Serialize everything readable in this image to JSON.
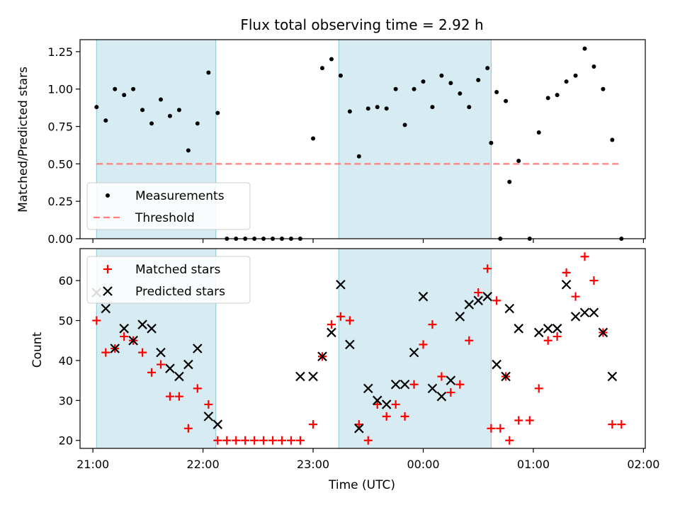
{
  "chart_data": [
    {
      "type": "scatter",
      "title": "Flux total observing time = 2.92 h",
      "ylabel": "Matched/Predicted stars",
      "xlabel": "",
      "xlim": [
        "20:53",
        "02:01"
      ],
      "ylim": [
        0,
        1.33
      ],
      "yticks": [
        "0.00",
        "0.25",
        "0.50",
        "0.75",
        "1.00",
        "1.25"
      ],
      "grid": false,
      "legend_placement": "lower-left",
      "shaded_intervals": [
        [
          "21:02",
          "22:07"
        ],
        [
          "23:14",
          "00:37"
        ]
      ],
      "series": [
        {
          "name": "Measurements",
          "marker": "dot",
          "color": "#000000",
          "points": [
            [
              "21:02",
              0.88
            ],
            [
              "21:07",
              0.79
            ],
            [
              "21:12",
              1.0
            ],
            [
              "21:17",
              0.96
            ],
            [
              "21:22",
              1.0
            ],
            [
              "21:27",
              0.86
            ],
            [
              "21:32",
              0.77
            ],
            [
              "21:37",
              0.93
            ],
            [
              "21:42",
              0.82
            ],
            [
              "21:47",
              0.86
            ],
            [
              "21:52",
              0.59
            ],
            [
              "21:57",
              0.77
            ],
            [
              "22:03",
              1.11
            ],
            [
              "22:08",
              0.84
            ],
            [
              "22:13",
              0.0
            ],
            [
              "22:18",
              0.0
            ],
            [
              "22:23",
              0.0
            ],
            [
              "22:28",
              0.0
            ],
            [
              "22:33",
              0.0
            ],
            [
              "22:38",
              0.0
            ],
            [
              "22:43",
              0.0
            ],
            [
              "22:48",
              0.0
            ],
            [
              "22:53",
              0.0
            ],
            [
              "23:00",
              0.67
            ],
            [
              "23:05",
              1.14
            ],
            [
              "23:10",
              1.2
            ],
            [
              "23:15",
              1.09
            ],
            [
              "23:20",
              0.85
            ],
            [
              "23:25",
              0.55
            ],
            [
              "23:30",
              0.87
            ],
            [
              "23:35",
              0.88
            ],
            [
              "23:40",
              0.87
            ],
            [
              "23:45",
              1.0
            ],
            [
              "23:50",
              0.76
            ],
            [
              "23:55",
              1.0
            ],
            [
              "00:00",
              1.05
            ],
            [
              "00:05",
              0.88
            ],
            [
              "00:10",
              1.09
            ],
            [
              "00:15",
              1.04
            ],
            [
              "00:20",
              0.97
            ],
            [
              "00:25",
              0.88
            ],
            [
              "00:30",
              1.06
            ],
            [
              "00:35",
              1.14
            ],
            [
              "00:40",
              0.98
            ],
            [
              "00:45",
              0.92
            ],
            [
              "00:37",
              0.64
            ],
            [
              "00:42",
              0.0
            ],
            [
              "00:47",
              0.38
            ],
            [
              "00:52",
              0.52
            ],
            [
              "00:58",
              0.0
            ],
            [
              "01:03",
              0.71
            ],
            [
              "01:08",
              0.94
            ],
            [
              "01:13",
              0.96
            ],
            [
              "01:18",
              1.05
            ],
            [
              "01:23",
              1.09
            ],
            [
              "01:28",
              1.27
            ],
            [
              "01:33",
              1.15
            ],
            [
              "01:38",
              1.0
            ],
            [
              "01:43",
              0.66
            ],
            [
              "01:48",
              0.0
            ]
          ]
        },
        {
          "name": "Threshold",
          "marker": "dashed-line",
          "color": "#ff8080",
          "points": [
            [
              "21:02",
              0.5
            ],
            [
              "01:48",
              0.5
            ]
          ]
        }
      ]
    },
    {
      "type": "scatter",
      "title": "",
      "ylabel": "Count",
      "xlabel": "Time (UTC)",
      "xlim": [
        "20:53",
        "02:01"
      ],
      "ylim": [
        18,
        68
      ],
      "xticks": [
        "21:00",
        "22:00",
        "23:00",
        "00:00",
        "01:00",
        "02:00"
      ],
      "yticks": [
        "20",
        "30",
        "40",
        "50",
        "60"
      ],
      "grid": false,
      "legend_placement": "upper-left",
      "shaded_intervals": [
        [
          "21:02",
          "22:07"
        ],
        [
          "23:14",
          "00:37"
        ]
      ],
      "series": [
        {
          "name": "Matched stars",
          "marker": "plus",
          "color": "#ff0000",
          "points": [
            [
              "21:02",
              50
            ],
            [
              "21:07",
              42
            ],
            [
              "21:12",
              43
            ],
            [
              "21:17",
              46
            ],
            [
              "21:22",
              45
            ],
            [
              "21:27",
              42
            ],
            [
              "21:32",
              37
            ],
            [
              "21:37",
              39
            ],
            [
              "21:42",
              31
            ],
            [
              "21:47",
              31
            ],
            [
              "21:52",
              23
            ],
            [
              "21:57",
              33
            ],
            [
              "22:03",
              29
            ],
            [
              "22:08",
              20
            ],
            [
              "22:13",
              20
            ],
            [
              "22:18",
              20
            ],
            [
              "22:23",
              20
            ],
            [
              "22:28",
              20
            ],
            [
              "22:33",
              20
            ],
            [
              "22:38",
              20
            ],
            [
              "22:43",
              20
            ],
            [
              "22:48",
              20
            ],
            [
              "22:53",
              20
            ],
            [
              "23:00",
              24
            ],
            [
              "23:05",
              41
            ],
            [
              "23:10",
              49
            ],
            [
              "23:15",
              51
            ],
            [
              "23:20",
              50
            ],
            [
              "23:25",
              24
            ],
            [
              "23:30",
              20
            ],
            [
              "23:35",
              29
            ],
            [
              "23:40",
              26
            ],
            [
              "23:45",
              29
            ],
            [
              "23:50",
              26
            ],
            [
              "23:55",
              34
            ],
            [
              "00:00",
              44
            ],
            [
              "00:05",
              49
            ],
            [
              "00:10",
              36
            ],
            [
              "00:15",
              32
            ],
            [
              "00:20",
              34
            ],
            [
              "00:25",
              45
            ],
            [
              "00:30",
              57
            ],
            [
              "00:35",
              63
            ],
            [
              "00:40",
              55
            ],
            [
              "00:45",
              36
            ],
            [
              "00:37",
              23
            ],
            [
              "00:42",
              23
            ],
            [
              "00:47",
              20
            ],
            [
              "00:52",
              25
            ],
            [
              "00:58",
              25
            ],
            [
              "01:03",
              33
            ],
            [
              "01:08",
              45
            ],
            [
              "01:13",
              46
            ],
            [
              "01:18",
              62
            ],
            [
              "01:23",
              56
            ],
            [
              "01:28",
              66
            ],
            [
              "01:33",
              60
            ],
            [
              "01:38",
              47
            ],
            [
              "01:43",
              24
            ],
            [
              "01:48",
              24
            ]
          ]
        },
        {
          "name": "Predicted stars",
          "marker": "x",
          "color": "#000000",
          "points": [
            [
              "21:02",
              57
            ],
            [
              "21:07",
              53
            ],
            [
              "21:12",
              43
            ],
            [
              "21:17",
              48
            ],
            [
              "21:22",
              45
            ],
            [
              "21:27",
              49
            ],
            [
              "21:32",
              48
            ],
            [
              "21:37",
              42
            ],
            [
              "21:42",
              38
            ],
            [
              "21:47",
              36
            ],
            [
              "21:52",
              39
            ],
            [
              "21:57",
              43
            ],
            [
              "22:03",
              26
            ],
            [
              "22:08",
              24
            ],
            [
              "22:53",
              36
            ],
            [
              "23:00",
              36
            ],
            [
              "23:05",
              41
            ],
            [
              "23:10",
              47
            ],
            [
              "23:15",
              59
            ],
            [
              "23:20",
              44
            ],
            [
              "23:25",
              23
            ],
            [
              "23:30",
              33
            ],
            [
              "23:35",
              30
            ],
            [
              "23:40",
              29
            ],
            [
              "23:45",
              34
            ],
            [
              "23:50",
              34
            ],
            [
              "23:55",
              42
            ],
            [
              "00:00",
              56
            ],
            [
              "00:05",
              33
            ],
            [
              "00:10",
              31
            ],
            [
              "00:15",
              35
            ],
            [
              "00:20",
              51
            ],
            [
              "00:25",
              54
            ],
            [
              "00:30",
              55
            ],
            [
              "00:35",
              56
            ],
            [
              "00:40",
              39
            ],
            [
              "00:45",
              36
            ],
            [
              "00:47",
              53
            ],
            [
              "00:52",
              48
            ],
            [
              "01:03",
              47
            ],
            [
              "01:08",
              48
            ],
            [
              "01:13",
              48
            ],
            [
              "01:18",
              59
            ],
            [
              "01:23",
              51
            ],
            [
              "01:28",
              52
            ],
            [
              "01:33",
              52
            ],
            [
              "01:38",
              47
            ],
            [
              "01:43",
              36
            ]
          ]
        }
      ]
    }
  ]
}
